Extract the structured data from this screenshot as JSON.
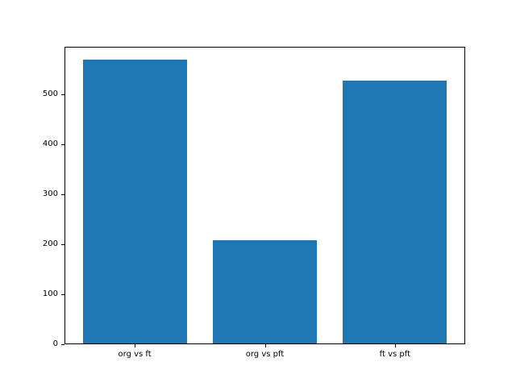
{
  "figure": {
    "background": "#ffffff"
  },
  "chart_data": {
    "type": "bar",
    "categories": [
      "org vs ft",
      "org vs pft",
      "ft vs pft"
    ],
    "values": [
      568,
      207,
      526
    ],
    "title": "",
    "xlabel": "",
    "ylabel": "",
    "ylim": [
      0,
      595
    ],
    "xlim": [
      -0.54,
      2.54
    ],
    "bar_width": 0.8,
    "yticks": [
      0,
      100,
      200,
      300,
      400,
      500
    ],
    "bar_color": "#1f77b4",
    "axis_color": "#000000",
    "tick_label_color": "#000000",
    "grid": false,
    "legend_position": "none"
  }
}
